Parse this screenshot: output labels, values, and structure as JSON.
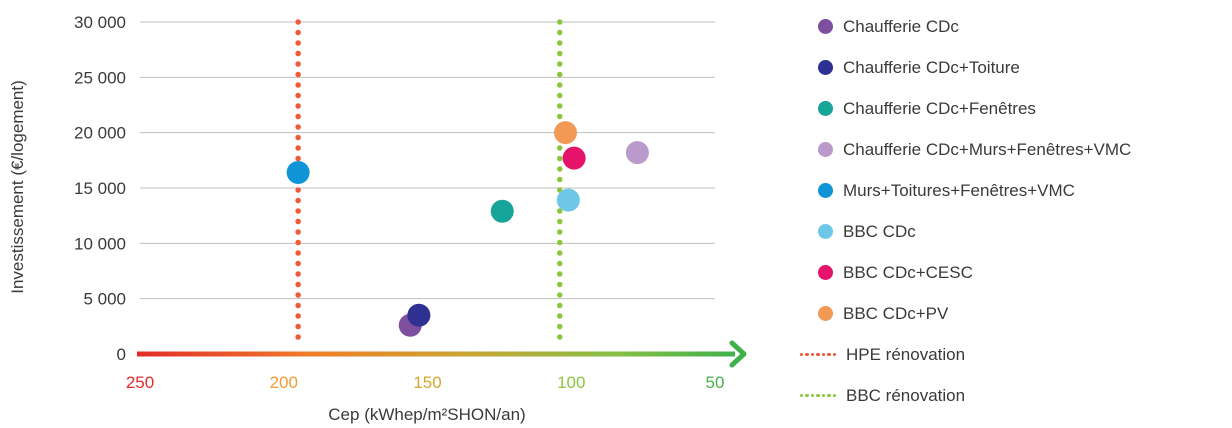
{
  "chart_data": {
    "type": "scatter",
    "xlabel": "Cep (kWhep/m²SHON/an)",
    "ylabel": "Investissement (€/logement)",
    "xlim": [
      250,
      50
    ],
    "xticks": [
      250,
      200,
      150,
      100,
      50
    ],
    "xtick_labels": [
      "250",
      "200",
      "150",
      "100",
      "50"
    ],
    "xtick_colors": [
      "#e32b2b",
      "#f29b2e",
      "#d4a72c",
      "#8cc63e",
      "#48b14a"
    ],
    "ylim": [
      0,
      30000
    ],
    "yticks": [
      0,
      5000,
      10000,
      15000,
      20000,
      25000,
      30000
    ],
    "ytick_labels": [
      "0",
      "5 000",
      "10 000",
      "15 000",
      "20 000",
      "25 000",
      "30 000"
    ],
    "grid": "horizontal",
    "legend_position": "right",
    "series": [
      {
        "name": "Chaufferie CDc",
        "color": "#7d4f9e",
        "points": [
          {
            "x": 156,
            "y": 2600
          }
        ]
      },
      {
        "name": "Chaufferie CDc+Toiture",
        "color": "#2e3192",
        "points": [
          {
            "x": 153,
            "y": 3500
          }
        ]
      },
      {
        "name": "Chaufferie CDc+Fenêtres",
        "color": "#17a59a",
        "points": [
          {
            "x": 124,
            "y": 12900
          }
        ]
      },
      {
        "name": "Chaufferie CDc+Murs+Fenêtres+VMC",
        "color": "#b99acb",
        "points": [
          {
            "x": 77,
            "y": 18200
          }
        ]
      },
      {
        "name": "Murs+Toitures+Fenêtres+VMC",
        "color": "#0f94d8",
        "points": [
          {
            "x": 195,
            "y": 16400
          }
        ]
      },
      {
        "name": "BBC CDc",
        "color": "#6fc7e8",
        "points": [
          {
            "x": 101,
            "y": 13900
          }
        ]
      },
      {
        "name": "BBC CDc+CESC",
        "color": "#e5136a",
        "points": [
          {
            "x": 99,
            "y": 17700
          }
        ]
      },
      {
        "name": "BBC CDc+PV",
        "color": "#f29a55",
        "points": [
          {
            "x": 102,
            "y": 20000
          }
        ]
      }
    ],
    "reference_lines": [
      {
        "name": "HPE rénovation",
        "x": 195,
        "color": "#ee5a3a",
        "style": "dotted"
      },
      {
        "name": "BBC rénovation",
        "x": 104,
        "color": "#8cc63e",
        "style": "dotted"
      }
    ]
  }
}
